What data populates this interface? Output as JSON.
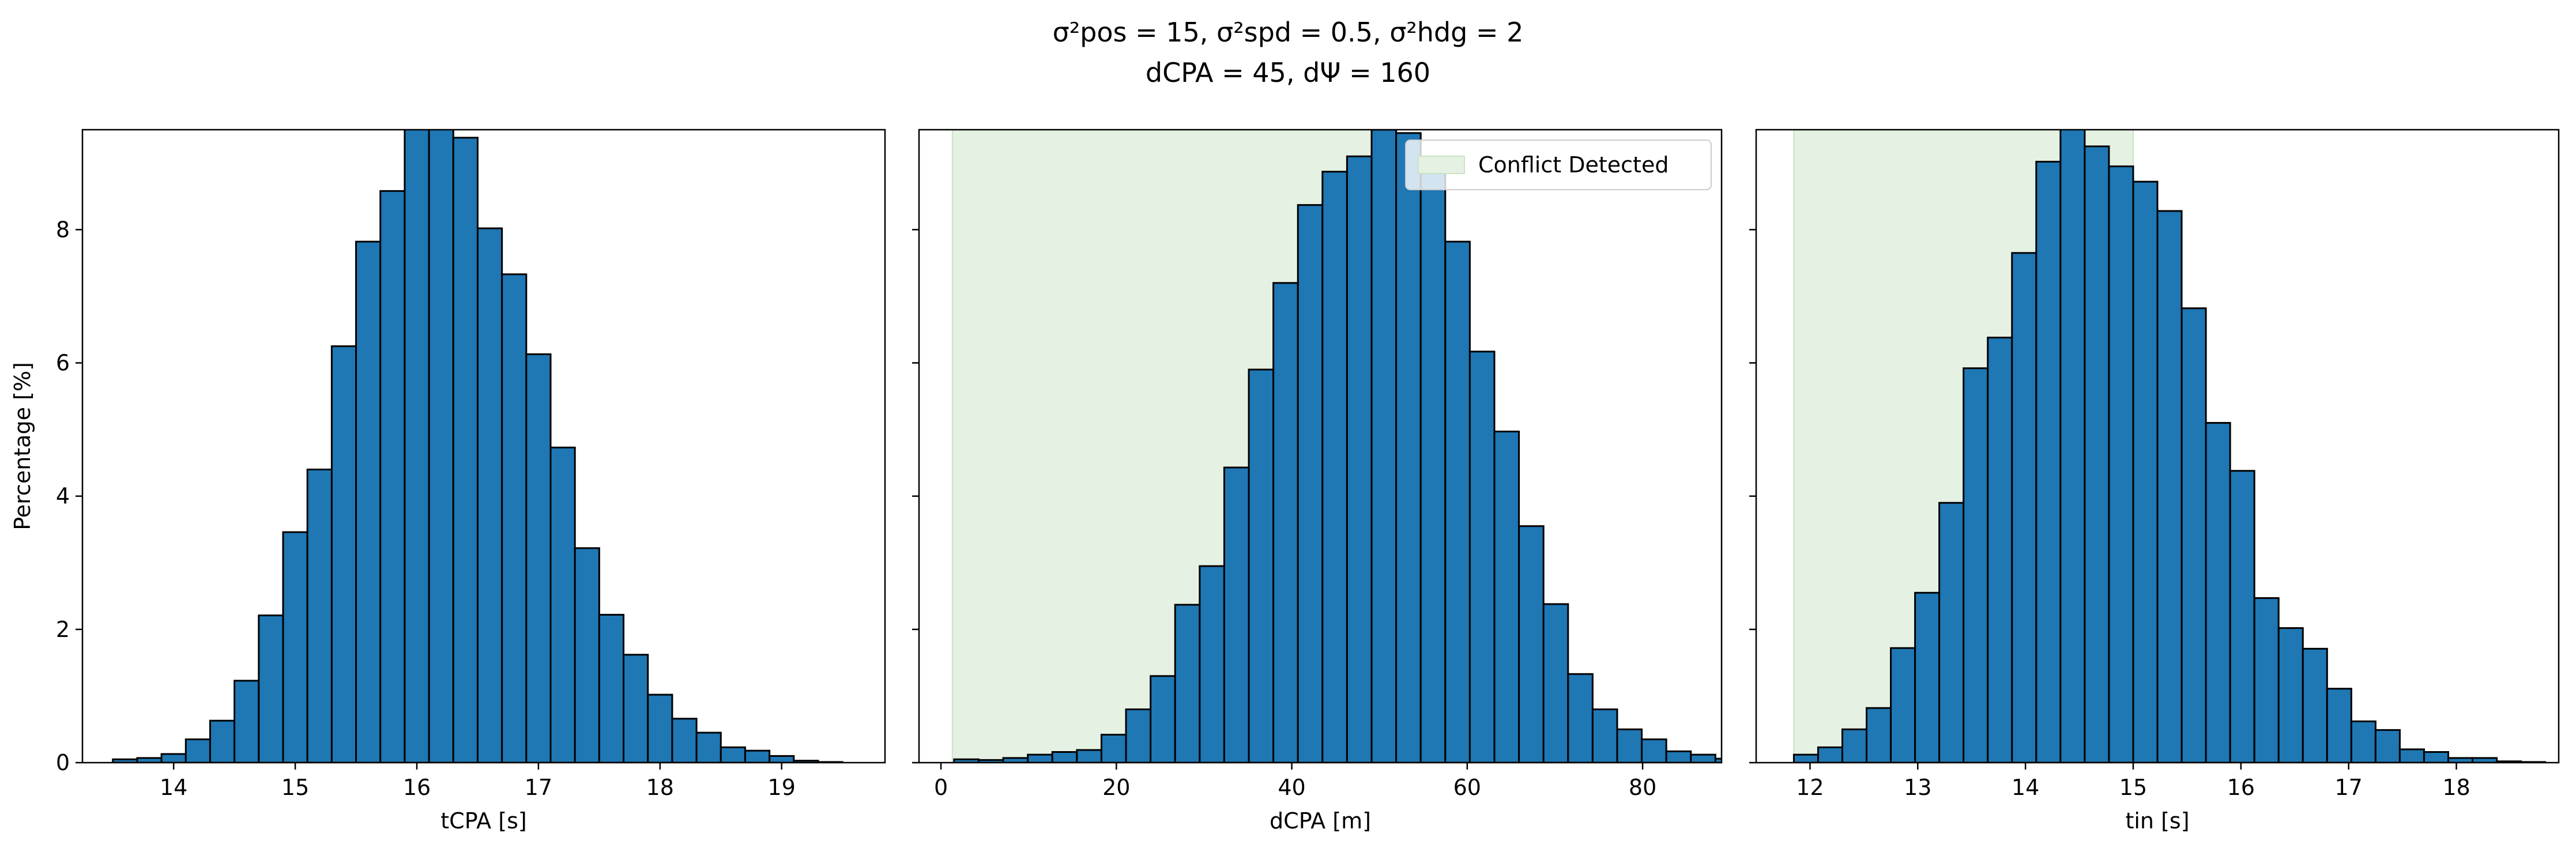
{
  "figure": {
    "title_line1": "σ²pos = 15, σ²spd = 0.5, σ²hdg = 2",
    "title_line2": "dCPA = 45, dΨ = 160"
  },
  "colors": {
    "bar_fill": "#1f77b4",
    "bar_edge": "#000000",
    "region_fill": "#e5f1e3",
    "region_edge": "#c9e3c5"
  },
  "chart_data": [
    {
      "type": "bar",
      "xlabel": "tCPA [s]",
      "ylabel": "Percentage [%]",
      "xlim": [
        13.25,
        19.85
      ],
      "ylim": [
        0,
        9.5
      ],
      "xticks": [
        14,
        15,
        16,
        17,
        18,
        19
      ],
      "yticks": [
        0,
        2,
        4,
        6,
        8
      ],
      "bin_start": 13.5,
      "bin_width": 0.2,
      "values": [
        0.05,
        0.07,
        0.13,
        0.35,
        0.63,
        1.23,
        2.21,
        3.46,
        4.4,
        6.25,
        7.82,
        8.58,
        9.55,
        9.55,
        9.38,
        8.02,
        7.33,
        6.13,
        4.73,
        3.22,
        2.22,
        1.62,
        1.02,
        0.66,
        0.45,
        0.23,
        0.18,
        0.1,
        0.03,
        0.01
      ]
    },
    {
      "type": "bar",
      "xlabel": "dCPA [m]",
      "ylabel": "",
      "xlim": [
        -2.5,
        89
      ],
      "ylim": [
        0,
        9.5
      ],
      "xticks": [
        0,
        20,
        40,
        60,
        80
      ],
      "yticks": [
        0,
        2,
        4,
        6,
        8
      ],
      "bin_start": 1.5,
      "bin_width": 2.8,
      "values": [
        0.05,
        0.04,
        0.07,
        0.12,
        0.16,
        0.19,
        0.42,
        0.8,
        1.3,
        2.37,
        2.95,
        4.43,
        5.9,
        7.2,
        8.37,
        8.87,
        9.1,
        9.5,
        9.45,
        8.93,
        7.82,
        6.17,
        4.97,
        3.55,
        2.38,
        1.33,
        0.8,
        0.5,
        0.35,
        0.17,
        0.12,
        0.06
      ],
      "shaded_region": {
        "x0": 1.3,
        "x1": 50,
        "label": "Conflict Detected"
      },
      "legend": {
        "label": "Conflict Detected",
        "position": "top-right"
      }
    },
    {
      "type": "bar",
      "xlabel": "tin [s]",
      "ylabel": "",
      "xlim": [
        11.5,
        18.95
      ],
      "ylim": [
        0,
        9.5
      ],
      "xticks": [
        12,
        13,
        14,
        15,
        16,
        17,
        18
      ],
      "yticks": [
        0,
        2,
        4,
        6,
        8
      ],
      "bin_start": 11.85,
      "bin_width": 0.225,
      "values": [
        0.12,
        0.23,
        0.5,
        0.82,
        1.72,
        2.55,
        3.9,
        5.92,
        6.38,
        7.65,
        9.02,
        9.55,
        9.25,
        8.95,
        8.72,
        8.28,
        6.82,
        5.1,
        4.38,
        2.47,
        2.02,
        1.71,
        1.11,
        0.62,
        0.49,
        0.2,
        0.16,
        0.07,
        0.07,
        0.02,
        0.01
      ],
      "shaded_region": {
        "x0": 11.85,
        "x1": 15.0
      }
    }
  ]
}
